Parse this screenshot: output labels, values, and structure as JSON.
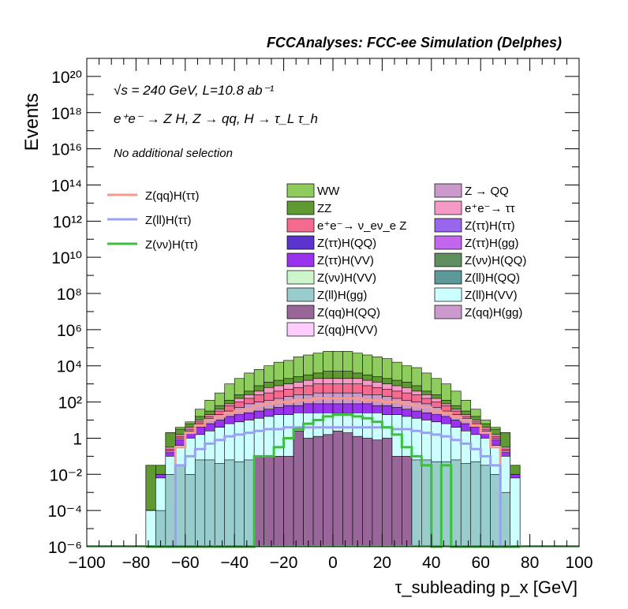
{
  "chart_data": {
    "type": "bar",
    "title": "FCCAnalyses: FCC-ee Simulation (Delphes)",
    "xlabel": "τ_subleading p_x [GeV]",
    "ylabel": "Events",
    "xlim": [
      -100,
      100
    ],
    "ylim_log10": [
      -6,
      21
    ],
    "log_y": true,
    "annotations": {
      "line1": "√s = 240 GeV, L=10.8 ab⁻¹",
      "line2": "e⁺e⁻ → Z H, Z → qq, H → τ_L τ_h",
      "line3": "No additional selection"
    },
    "x_ticks": [
      "−100",
      "−80",
      "−60",
      "−40",
      "−20",
      "0",
      "20",
      "40",
      "60",
      "80",
      "100"
    ],
    "y_ticks": [
      "10⁻⁶",
      "10⁻⁴",
      "10⁻²",
      "1",
      "10²",
      "10⁴",
      "10⁶",
      "10⁸",
      "10¹⁰",
      "10¹²",
      "10¹⁴",
      "10¹⁶",
      "10¹⁸",
      "10²⁰"
    ],
    "legend_lines": [
      {
        "label": "Z(qq)H(ττ)",
        "color": "#f59a8f"
      },
      {
        "label": "Z(ll)H(ττ)",
        "color": "#9aa0f5"
      },
      {
        "label": "Z(νν)H(ττ)",
        "color": "#3cbf3c"
      }
    ],
    "legend_fills": [
      {
        "label": "WW",
        "color": "#8fcc5e"
      },
      {
        "label": "Z → QQ",
        "color": "#cc99cc"
      },
      {
        "label": "ZZ",
        "color": "#5e9932"
      },
      {
        "label": "e⁺e⁻→ ττ",
        "color": "#f59ac6"
      },
      {
        "label": "e⁺e⁻→ ν_eν_e Z",
        "color": "#f56b8f"
      },
      {
        "label": "Z(ττ)H(ττ)",
        "color": "#9966ee"
      },
      {
        "label": "Z(ττ)H(QQ)",
        "color": "#5c33cc"
      },
      {
        "label": "Z(ττ)H(gg)",
        "color": "#c266ee"
      },
      {
        "label": "Z(ττ)H(VV)",
        "color": "#9933ee"
      },
      {
        "label": "Z(νν)H(QQ)",
        "color": "#5e8f5e"
      },
      {
        "label": "Z(νν)H(VV)",
        "color": "#ccf5cc"
      },
      {
        "label": "Z(ll)H(QQ)",
        "color": "#5e9999"
      },
      {
        "label": "Z(ll)H(gg)",
        "color": "#99cccc"
      },
      {
        "label": "Z(ll)H(VV)",
        "color": "#ccffff"
      },
      {
        "label": "Z(qq)H(QQ)",
        "color": "#996699"
      },
      {
        "label": "Z(qq)H(gg)",
        "color": "#cc99cc"
      },
      {
        "label": "Z(qq)H(VV)",
        "color": "#ffccff"
      }
    ],
    "bin_edges": [
      -76,
      -72,
      -68,
      -64,
      -60,
      -56,
      -52,
      -48,
      -44,
      -40,
      -36,
      -32,
      -28,
      -24,
      -20,
      -16,
      -12,
      -8,
      -4,
      0,
      4,
      8,
      12,
      16,
      20,
      24,
      28,
      32,
      36,
      40,
      44,
      48,
      52,
      56,
      60,
      64,
      68,
      72,
      76
    ],
    "stack_log10": [
      {
        "name": "WW",
        "color": "#8fcc5e",
        "values": [
          -1.5,
          -1.5,
          0.3,
          0.6,
          0.9,
          1.6,
          2.1,
          2.5,
          3,
          3.3,
          3.6,
          3.8,
          4.0,
          4.2,
          4.3,
          4.5,
          4.6,
          4.7,
          4.8,
          4.8,
          4.8,
          4.7,
          4.6,
          4.5,
          4.4,
          4.2,
          4.0,
          3.9,
          3.6,
          3.3,
          3.0,
          2.6,
          2.1,
          1.6,
          1.0,
          0.6,
          0.3,
          -1.5
        ]
      },
      {
        "name": "ZZ",
        "color": "#5e9932",
        "values": [
          -1.5,
          -1.5,
          0.3,
          0.5,
          0.8,
          1.2,
          1.5,
          1.8,
          2.1,
          2.4,
          2.6,
          2.9,
          3.1,
          3.2,
          3.3,
          3.4,
          3.5,
          3.6,
          3.7,
          3.7,
          3.7,
          3.6,
          3.5,
          3.4,
          3.3,
          3.2,
          3.1,
          2.9,
          2.6,
          2.4,
          2.1,
          1.8,
          1.5,
          1.2,
          0.8,
          0.5,
          0.3,
          -1.5
        ]
      },
      {
        "name": "e⁺e⁻→ ττ",
        "color": "#f59ac6",
        "values": [
          -4,
          -2,
          -0.5,
          0.2,
          0.6,
          1.0,
          1.3,
          1.6,
          1.9,
          2.2,
          2.4,
          2.6,
          2.8,
          2.9,
          3.0,
          3.1,
          3.2,
          3.3,
          3.3,
          3.3,
          3.3,
          3.3,
          3.2,
          3.1,
          3.0,
          2.9,
          2.8,
          2.6,
          2.4,
          2.2,
          1.9,
          1.6,
          1.3,
          1.0,
          0.6,
          0.2,
          -0.5,
          -2
        ]
      },
      {
        "name": "e⁺e⁻→ ν_eν_e Z",
        "color": "#f56b8f",
        "values": [
          -4,
          -2,
          -0.6,
          0.1,
          0.5,
          0.9,
          1.2,
          1.5,
          1.8,
          2.0,
          2.2,
          2.4,
          2.5,
          2.6,
          2.7,
          2.8,
          2.9,
          3.0,
          3.0,
          3.0,
          3.0,
          3.0,
          2.9,
          2.8,
          2.7,
          2.6,
          2.5,
          2.4,
          2.2,
          2.0,
          1.8,
          1.5,
          1.2,
          0.9,
          0.5,
          0.1,
          -0.6,
          -2
        ]
      },
      {
        "name": "Z → QQ",
        "color": "#cc99cc",
        "values": [
          -4,
          -2,
          -0.7,
          0,
          0.4,
          0.8,
          1.1,
          1.3,
          1.5,
          1.7,
          1.9,
          2.0,
          2.1,
          2.2,
          2.3,
          2.4,
          2.4,
          2.5,
          2.5,
          2.5,
          2.5,
          2.5,
          2.4,
          2.4,
          2.3,
          2.2,
          2.1,
          2.0,
          1.9,
          1.7,
          1.5,
          1.3,
          1.1,
          0.8,
          0.4,
          0,
          -0.7,
          -2
        ]
      },
      {
        "name": "Z(ττ)H(VV)",
        "color": "#9933ee",
        "values": [
          -4,
          -2,
          -0.8,
          -0.1,
          0.3,
          0.6,
          0.8,
          1.0,
          1.2,
          1.3,
          1.4,
          1.5,
          1.6,
          1.7,
          1.8,
          1.8,
          1.9,
          1.9,
          1.9,
          1.9,
          1.9,
          1.9,
          1.9,
          1.8,
          1.8,
          1.7,
          1.6,
          1.5,
          1.4,
          1.3,
          1.2,
          1.0,
          0.8,
          0.6,
          0.3,
          -0.1,
          -0.8,
          -2
        ]
      },
      {
        "name": "Z(ll)H(VV)",
        "color": "#ccffff",
        "values": [
          -4,
          -2.2,
          -1.0,
          -0.4,
          0,
          0.2,
          0.4,
          0.6,
          0.8,
          0.9,
          1.0,
          1.1,
          1.2,
          1.3,
          1.3,
          1.4,
          1.4,
          1.4,
          1.4,
          1.4,
          1.4,
          1.4,
          1.4,
          1.4,
          1.3,
          1.3,
          1.2,
          1.1,
          1.0,
          0.9,
          0.8,
          0.6,
          0.4,
          0.2,
          0,
          -0.4,
          -1.0,
          -2.2
        ]
      },
      {
        "name": "Z(ll)H(gg)",
        "color": "#99cccc",
        "values": [
          -6,
          -4,
          -2,
          -1.5,
          -2,
          -1.2,
          -1.2,
          -1.4,
          -1.2,
          -1.3,
          -1.2,
          -1.2,
          -1.1,
          -1.2,
          -1.2,
          -1.1,
          -1.0,
          -1.1,
          -1.1,
          -1.0,
          -1.1,
          -1.2,
          -1.1,
          -1.1,
          -1.2,
          -1.1,
          -1.3,
          -1.2,
          -1.2,
          -1.3,
          -1.3,
          -1.2,
          -1.4,
          -1.3,
          -1.5,
          -2,
          -3,
          -6
        ]
      },
      {
        "name": "Z(qq)H(QQ)",
        "color": "#996699",
        "values": [
          -6,
          -6,
          -6,
          -6,
          -6,
          -6,
          -6,
          -6,
          -6,
          -6,
          -6,
          -1,
          -1,
          -1,
          -1,
          0.4,
          0,
          0.1,
          0.2,
          0.4,
          0.3,
          0.1,
          0,
          -0.1,
          0,
          -1,
          -1,
          -6,
          -6,
          -6,
          -6,
          -6,
          -6,
          -6,
          -6,
          -6,
          -6,
          -6
        ]
      }
    ],
    "lines_log10": [
      {
        "name": "Z(qq)H(ττ)",
        "color": "#f59a8f",
        "values": [
          -6,
          -6,
          -6,
          -0.5,
          0.3,
          0.7,
          1.0,
          1.2,
          1.4,
          1.5,
          1.6,
          1.8,
          1.9,
          2.0,
          2.0,
          2.1,
          2.1,
          2.2,
          2.2,
          2.2,
          2.2,
          2.2,
          2.1,
          2.1,
          2.0,
          2.0,
          1.9,
          1.8,
          1.7,
          1.5,
          1.4,
          1.2,
          1.0,
          0.7,
          0.3,
          -0.5,
          -6,
          -6
        ]
      },
      {
        "name": "Z(ll)H(ττ)",
        "color": "#9aa0f5",
        "values": [
          -6,
          -6,
          -6,
          -1.5,
          -1.0,
          -0.6,
          -0.3,
          -0.1,
          0.1,
          0.2,
          0.3,
          0.4,
          0.5,
          0.5,
          0.6,
          0.6,
          0.6,
          0.6,
          0.6,
          0.6,
          0.6,
          0.6,
          0.6,
          0.6,
          0.6,
          0.5,
          0.5,
          0.4,
          0.3,
          0.2,
          0.1,
          -0.1,
          -0.3,
          -0.6,
          -1.0,
          -1.5,
          -6,
          -6
        ]
      },
      {
        "name": "Z(νν)H(ττ)",
        "color": "#3cbf3c",
        "values": [
          -6,
          -6,
          -6,
          -6,
          -6,
          -6,
          -6,
          -6,
          -6,
          -6,
          -6,
          -1,
          -1,
          -0.5,
          0,
          0.5,
          0.8,
          1.0,
          1.2,
          1.3,
          1.3,
          1.2,
          1.1,
          0.9,
          0.6,
          0.2,
          -0.5,
          -1,
          -1.5,
          -6,
          -1.5,
          -6,
          -6,
          -6,
          -6,
          -6,
          -6,
          -6
        ]
      }
    ]
  }
}
